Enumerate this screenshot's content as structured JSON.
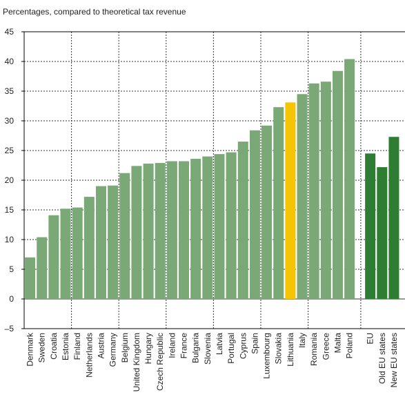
{
  "chart_data": {
    "type": "bar",
    "title": "Percentages, compared to theoretical tax revenue",
    "xlabel": "",
    "ylabel": "",
    "ylim": [
      -5,
      45
    ],
    "yticks": [
      -5,
      0,
      5,
      10,
      15,
      20,
      25,
      30,
      35,
      40,
      45
    ],
    "grid": true,
    "categories": [
      "Denmark",
      "Sweden",
      "Croatia",
      "Estonia",
      "Finland",
      "Netherlands",
      "Austria",
      "Germany",
      "Belgium",
      "United Kingdom",
      "Hungary",
      "Czech Republic",
      "Ireland",
      "France",
      "Bulgaria",
      "Slovenia",
      "Latvia",
      "Portugal",
      "Cyprus",
      "Spain",
      "Luxembourg",
      "Slovakia",
      "Lithuania",
      "Italy",
      "Romania",
      "Greece",
      "Malta",
      "Poland",
      "EU",
      "Old EU states",
      "New EU states"
    ],
    "values": [
      7.0,
      10.4,
      14.1,
      15.2,
      15.4,
      17.2,
      19.0,
      19.1,
      21.2,
      22.4,
      22.8,
      22.9,
      23.2,
      23.2,
      23.6,
      24.0,
      24.4,
      24.7,
      26.5,
      28.4,
      29.2,
      32.3,
      33.1,
      34.5,
      36.3,
      36.6,
      38.4,
      40.4,
      24.5,
      22.2,
      27.3
    ],
    "colors": {
      "country": "#7aa876",
      "highlight": "#f6c400",
      "aggregate": "#2e7d32"
    },
    "highlight_category": "Lithuania",
    "aggregate_categories": [
      "EU",
      "Old EU states",
      "New EU states"
    ]
  }
}
